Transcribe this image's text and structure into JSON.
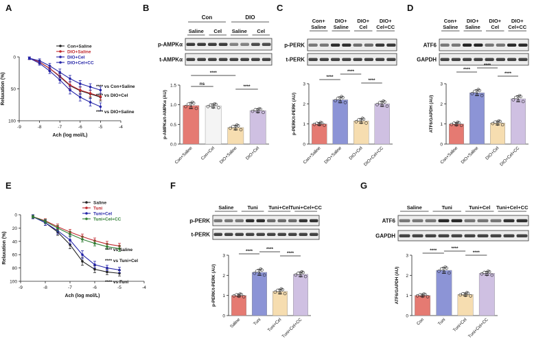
{
  "colors": {
    "black": "#222222",
    "red": "#c0282e",
    "blue": "#2424a8",
    "green": "#2e7d32",
    "bar_salmon": "#e57a72",
    "bar_white": "#f4f4f4",
    "bar_purple": "#8c94d6",
    "bar_yellow": "#f6ddb0",
    "bar_lilac": "#cfc0e2"
  },
  "chart_data": [
    {
      "panel": "A",
      "type": "line",
      "xlabel": "Ach (log mol/L)",
      "ylabel": "Relaxation (%)",
      "xlim": [
        -9,
        -4
      ],
      "ylim": [
        0,
        100
      ],
      "y_inverted": true,
      "xticks": [
        "-9",
        "-8",
        "-7",
        "-6",
        "-5",
        "-4"
      ],
      "yticks": [
        "0",
        "50",
        "100"
      ],
      "x": [
        -8.5,
        -8,
        -7.5,
        -7,
        -6.5,
        -6,
        -5.5,
        -5
      ],
      "series": [
        {
          "name": "Con+Saline",
          "color": "black",
          "values": [
            2,
            8,
            18,
            31,
            45,
            53,
            58,
            63
          ],
          "err": [
            2,
            3,
            4,
            5,
            6,
            6,
            6,
            6
          ]
        },
        {
          "name": "DIO+Saline",
          "color": "red",
          "values": [
            2,
            8,
            18,
            30,
            44,
            52,
            57,
            62
          ],
          "err": [
            2,
            3,
            4,
            5,
            5,
            5,
            5,
            5
          ]
        },
        {
          "name": "DIO+Cel",
          "color": "blue",
          "values": [
            2,
            10,
            22,
            36,
            52,
            63,
            71,
            78
          ],
          "err": [
            2,
            3,
            4,
            5,
            6,
            6,
            6,
            6
          ]
        },
        {
          "name": "DIO+Cel+CC",
          "color": "blue",
          "values": [
            2,
            6,
            14,
            24,
            34,
            42,
            47,
            52
          ],
          "err": [
            2,
            3,
            4,
            5,
            5,
            5,
            5,
            5
          ]
        }
      ],
      "annotations": [
        "**** vs Con+Saline",
        "**** vs DIO+Cel",
        "**** vs DIO+Saline"
      ]
    },
    {
      "panel": "B",
      "type": "bar",
      "blot_groups": [
        "Con",
        "DIO"
      ],
      "blot_lanes": [
        "Saline",
        "Cel",
        "Saline",
        "Cel"
      ],
      "blot_rows": [
        "p-AMPKα",
        "t-AMPKα"
      ],
      "ylabel": "p-AMPKα/t-AMPKα (AU)",
      "ylim": [
        0,
        1.5
      ],
      "yticks": [
        "0.0",
        "0.5",
        "1.0",
        "1.5"
      ],
      "categories": [
        "Con+Saline",
        "Con+Cel",
        "DIO+Saline",
        "DIO+Cel"
      ],
      "values": [
        0.98,
        0.97,
        0.42,
        0.85
      ],
      "err": [
        0.08,
        0.05,
        0.06,
        0.05
      ],
      "bar_colors": [
        "bar_salmon",
        "bar_white",
        "bar_yellow",
        "bar_lilac"
      ],
      "sig": [
        {
          "a": 0,
          "b": 1,
          "label": "ns"
        },
        {
          "a": 0,
          "b": 2,
          "label": "****"
        },
        {
          "a": 2,
          "b": 3,
          "label": "****"
        }
      ]
    },
    {
      "panel": "C",
      "type": "bar",
      "blot_lanes": [
        "Con+ Saline",
        "DIO+ Saline",
        "DIO+ Cel",
        "DIO+ Cel+CC"
      ],
      "blot_rows": [
        "p-PERK",
        "t-PERK"
      ],
      "ylabel": "p-PERK/t-PERK (AU)",
      "ylim": [
        0,
        3
      ],
      "yticks": [
        "0",
        "1",
        "2",
        "3"
      ],
      "categories": [
        "Con+Saline",
        "DIO+Saline",
        "DIO+Cel",
        "DIO+Cel+CC"
      ],
      "values": [
        1.0,
        2.2,
        1.15,
        2.0
      ],
      "err": [
        0.07,
        0.15,
        0.12,
        0.13
      ],
      "bar_colors": [
        "bar_salmon",
        "bar_purple",
        "bar_yellow",
        "bar_lilac"
      ],
      "sig": [
        {
          "a": 0,
          "b": 1,
          "label": "****"
        },
        {
          "a": 1,
          "b": 2,
          "label": "****"
        },
        {
          "a": 2,
          "b": 3,
          "label": "****"
        }
      ]
    },
    {
      "panel": "D",
      "type": "bar",
      "blot_lanes": [
        "Con+ Saline",
        "DIO+ Saline",
        "DIO+ Cel",
        "DIO+ Cel+CC"
      ],
      "blot_rows": [
        "ATF6",
        "GAPDH"
      ],
      "ylabel": "ATF6/GAPDH (AU)",
      "ylim": [
        0,
        3
      ],
      "yticks": [
        "0",
        "1",
        "2",
        "3"
      ],
      "categories": [
        "Con+Saline",
        "DIO+Saline",
        "DIO+Cel",
        "DIO+Cel+CC"
      ],
      "values": [
        1.0,
        2.55,
        1.05,
        2.25
      ],
      "err": [
        0.08,
        0.15,
        0.1,
        0.15
      ],
      "bar_colors": [
        "bar_salmon",
        "bar_purple",
        "bar_yellow",
        "bar_lilac"
      ],
      "sig": [
        {
          "a": 0,
          "b": 1,
          "label": "****"
        },
        {
          "a": 1,
          "b": 2,
          "label": "****"
        },
        {
          "a": 2,
          "b": 3,
          "label": "****"
        }
      ]
    },
    {
      "panel": "E",
      "type": "line",
      "xlabel": "Ach (log mol/L)",
      "ylabel": "Relaxation (%)",
      "xlim": [
        -9,
        -4
      ],
      "ylim": [
        0,
        100
      ],
      "y_inverted": true,
      "xticks": [
        "-9",
        "-8",
        "-7",
        "-6",
        "-5",
        "-4"
      ],
      "yticks": [
        "0",
        "20",
        "40",
        "60",
        "80",
        "100"
      ],
      "x": [
        -8.5,
        -8,
        -7.5,
        -7,
        -6.5,
        -6,
        -5.5,
        -5
      ],
      "series": [
        {
          "name": "Saline",
          "color": "black",
          "values": [
            3,
            12,
            26,
            45,
            70,
            82,
            86,
            88
          ],
          "err": [
            3,
            4,
            5,
            6,
            6,
            5,
            4,
            4
          ]
        },
        {
          "name": "Tuni",
          "color": "red",
          "values": [
            3,
            9,
            18,
            26,
            33,
            39,
            44,
            47
          ],
          "err": [
            2,
            3,
            4,
            4,
            4,
            4,
            4,
            4
          ]
        },
        {
          "name": "Tuni+Cel",
          "color": "blue",
          "values": [
            3,
            12,
            24,
            38,
            60,
            75,
            80,
            83
          ],
          "err": [
            3,
            4,
            5,
            6,
            6,
            5,
            4,
            4
          ]
        },
        {
          "name": "Tuni+Cel+CC",
          "color": "green",
          "values": [
            3,
            10,
            20,
            29,
            37,
            43,
            48,
            51
          ],
          "err": [
            2,
            3,
            4,
            4,
            4,
            4,
            4,
            4
          ]
        }
      ],
      "annotations": [
        "**** vs Saline",
        "**** vs Tuni+Cel",
        "**** vs Tuni"
      ]
    },
    {
      "panel": "F",
      "type": "bar",
      "blot_lanes": [
        "Saline",
        "Tuni",
        "Tuni+Cel",
        "Tuni+Cel+CC"
      ],
      "blot_rows": [
        "p-PERK",
        "t-PERK"
      ],
      "ylabel": "p-PERK/t-PERK (AU)",
      "ylim": [
        0,
        3
      ],
      "yticks": [
        "0",
        "1",
        "2",
        "3"
      ],
      "categories": [
        "Saline",
        "Tuni",
        "Tuni+Cel",
        "Tuni+Cel+CC"
      ],
      "values": [
        1.0,
        2.15,
        1.2,
        2.05
      ],
      "err": [
        0.07,
        0.15,
        0.12,
        0.12
      ],
      "bar_colors": [
        "bar_salmon",
        "bar_purple",
        "bar_yellow",
        "bar_lilac"
      ],
      "sig": [
        {
          "a": 0,
          "b": 1,
          "label": "****"
        },
        {
          "a": 1,
          "b": 2,
          "label": "****"
        },
        {
          "a": 2,
          "b": 3,
          "label": "****"
        }
      ]
    },
    {
      "panel": "G",
      "type": "bar",
      "blot_lanes": [
        "Saline",
        "Tuni",
        "Tuni+Cel",
        "Tuni+Cel+CC"
      ],
      "blot_rows": [
        "ATF6",
        "GAPDH"
      ],
      "ylabel": "ATF6/GAPDH (AU)",
      "ylim": [
        0,
        3
      ],
      "yticks": [
        "0",
        "1",
        "2",
        "3"
      ],
      "categories": [
        "Con",
        "Tuni",
        "Tuni+Cel",
        "Tuni+Cel+CC"
      ],
      "values": [
        1.0,
        2.25,
        1.05,
        2.1
      ],
      "err": [
        0.07,
        0.15,
        0.08,
        0.1
      ],
      "bar_colors": [
        "bar_salmon",
        "bar_purple",
        "bar_yellow",
        "bar_lilac"
      ],
      "sig": [
        {
          "a": 0,
          "b": 1,
          "label": "****"
        },
        {
          "a": 1,
          "b": 2,
          "label": "****"
        },
        {
          "a": 2,
          "b": 3,
          "label": "****"
        }
      ]
    }
  ]
}
